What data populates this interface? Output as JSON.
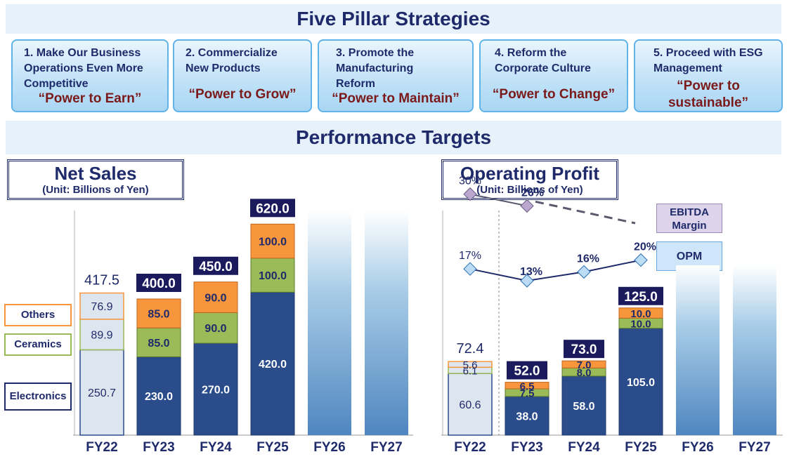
{
  "headings": {
    "strategies": "Five Pillar Strategies",
    "targets": "Performance Targets"
  },
  "pillars": [
    {
      "title": "1. Make Our Business Operations Even More Competitive",
      "phrase": "“Power to Earn”"
    },
    {
      "title": "2. Commercialize New Products",
      "phrase": "“Power to Grow”"
    },
    {
      "title": "3. Promote the Manufacturing Reform",
      "phrase": "“Power to Maintain”"
    },
    {
      "title": "4. Reform the Corporate Culture",
      "phrase": "“Power to Change”"
    },
    {
      "title": "5. Proceed with ESG Management",
      "phrase": "“Power to sustainable”"
    }
  ],
  "segments": {
    "others": "Others",
    "ceramics": "Ceramics",
    "electronics": "Electronics"
  },
  "margin_legend": {
    "ebitda": "EBITDA Margin",
    "opm": "OPM"
  },
  "colors": {
    "electronics": "#2a4c8b",
    "ceramics": "#9bbb59",
    "others": "#f7963c",
    "actual_fill": "#dde6ee",
    "total_label_bg": "#1a1a5c",
    "future_bar": "#5a8ec4",
    "ebitda_line": "#5a5a6e",
    "ebitda_marker": "#b9a7cf",
    "opm_line": "#1f2a6b",
    "opm_marker": "#bcdcf6"
  },
  "chart_data": [
    {
      "type": "bar",
      "title": "Net Sales",
      "subtitle": "(Unit: Billions of Yen)",
      "categories": [
        "FY22",
        "FY23",
        "FY24",
        "FY25",
        "FY26",
        "FY27"
      ],
      "series": [
        {
          "name": "Electronics",
          "values": [
            250.7,
            230.0,
            270.0,
            420.0,
            null,
            null
          ]
        },
        {
          "name": "Ceramics",
          "values": [
            89.9,
            85.0,
            90.0,
            100.0,
            null,
            null
          ]
        },
        {
          "name": "Others",
          "values": [
            76.9,
            85.0,
            90.0,
            100.0,
            null,
            null
          ]
        }
      ],
      "totals": [
        "417.5",
        "400.0",
        "450.0",
        "620.0",
        null,
        null
      ],
      "segment_labels": {
        "Electronics": [
          "250.7",
          "230.0",
          "270.0",
          "420.0"
        ],
        "Ceramics": [
          "89.9",
          "85.0",
          "90.0",
          "100.0"
        ],
        "Others": [
          "76.9",
          "85.0",
          "90.0",
          "100.0"
        ]
      },
      "future_bars": [
        "FY26",
        "FY27"
      ],
      "stacked": true
    },
    {
      "type": "bar",
      "title": "Operating  Profit",
      "subtitle": "(Unit: Billions of Yen)",
      "categories": [
        "FY22",
        "FY23",
        "FY24",
        "FY25",
        "FY26",
        "FY27"
      ],
      "series": [
        {
          "name": "Electronics",
          "values": [
            60.6,
            38.0,
            58.0,
            105.0,
            null,
            null
          ]
        },
        {
          "name": "Ceramics",
          "values": [
            6.1,
            7.5,
            8.0,
            10.0,
            null,
            null
          ]
        },
        {
          "name": "Others",
          "values": [
            5.6,
            6.5,
            7.0,
            10.0,
            null,
            null
          ]
        }
      ],
      "totals": [
        "72.4",
        "52.0",
        "73.0",
        "125.0",
        null,
        null
      ],
      "segment_labels": {
        "Electronics": [
          "60.6",
          "38.0",
          "58.0",
          "105.0"
        ],
        "Ceramics": [
          "6.1",
          "7.5",
          "8.0",
          "10.0"
        ],
        "Others": [
          "5.6",
          "6.5",
          "7.0",
          "10.0"
        ]
      },
      "future_bars": [
        "FY26",
        "FY27"
      ],
      "stacked": true,
      "lines": [
        {
          "name": "EBITDA Margin",
          "values": [
            30,
            26,
            null,
            null
          ],
          "labels": [
            "30%",
            "26%",
            null,
            null
          ],
          "trend": "dashed continuation to FY25"
        },
        {
          "name": "OPM",
          "values": [
            17,
            13,
            16,
            20
          ],
          "labels": [
            "17%",
            "13%",
            "16%",
            "20%"
          ]
        }
      ]
    }
  ]
}
